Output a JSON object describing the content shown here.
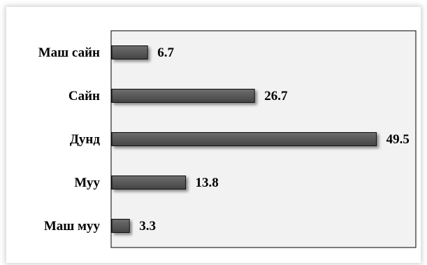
{
  "chart_data": {
    "type": "bar",
    "orientation": "horizontal",
    "categories": [
      "Маш сайн",
      "Сайн",
      "Дунд",
      "Муу",
      "Маш муу"
    ],
    "values": [
      6.7,
      26.7,
      49.5,
      13.8,
      3.3
    ],
    "title": "",
    "xlabel": "",
    "ylabel": "",
    "xlim": [
      0,
      57
    ],
    "grid": false,
    "legend": "none",
    "bar_color": "#555555",
    "plot_background": "#f2f2f2"
  }
}
